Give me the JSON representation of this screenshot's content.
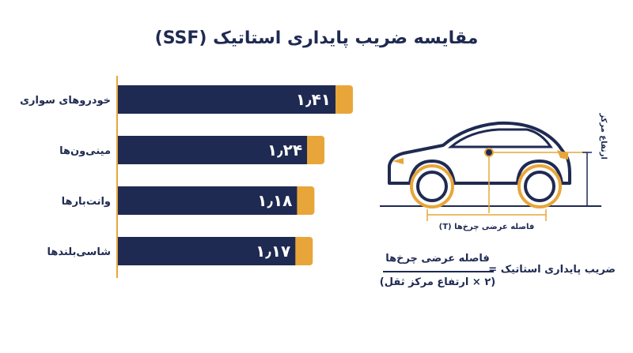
{
  "title": "مقایسه ضریب پایداری استاتیک (SSF)",
  "colors": {
    "bar": "#1f2a52",
    "bar_tip": "#e8a63a",
    "axis": "#e8a63a",
    "text": "#1f2a52"
  },
  "chart_data": {
    "type": "bar",
    "orientation": "horizontal",
    "categories": [
      "خودروهای سواری",
      "مینی‌ون‌ها",
      "وانت‌بارها",
      "شاسی‌بلندها"
    ],
    "values": [
      1.41,
      1.24,
      1.18,
      1.17
    ],
    "value_labels": [
      "۱٫۴۱",
      "۱٫۲۴",
      "۱٫۱۸",
      "۱٫۱۷"
    ],
    "title": "مقایسه ضریب پایداری استاتیک (SSF)",
    "xlabel": "",
    "ylabel": "",
    "grid": false,
    "legend": "none"
  },
  "diagram": {
    "track_label": "فاصله عرضی چرخ‌ها (T)",
    "height_label": "ارتفاع مرکز ثقل (H)"
  },
  "formula": {
    "left": "ضریب پایداری استاتیک =",
    "numerator": "فاصله عرضی چرخ‌ها",
    "denominator": "(۲ × ارتفاع مرکز ثقل)"
  }
}
